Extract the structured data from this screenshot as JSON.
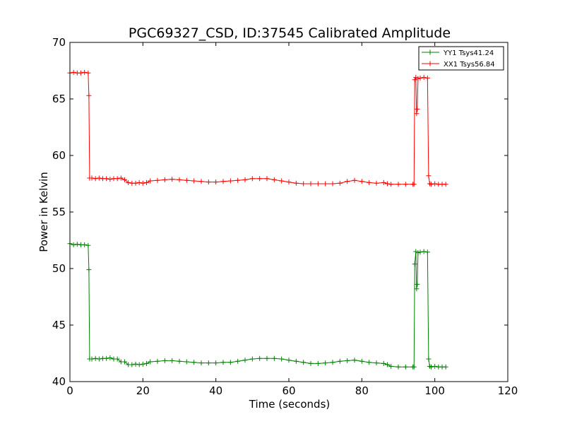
{
  "chart_data": {
    "type": "line",
    "title": "PGC69327_CSD, ID:37545 Calibrated Amplitude",
    "xlabel": "Time (seconds)",
    "ylabel": "Power in Kelvin",
    "xlim": [
      0,
      120
    ],
    "ylim": [
      40,
      70
    ],
    "xticks": [
      "0",
      "20",
      "40",
      "60",
      "80",
      "100",
      "120"
    ],
    "yticks": [
      "40",
      "45",
      "50",
      "55",
      "60",
      "65",
      "70"
    ],
    "grid": false,
    "legend_position": "top-right",
    "marker": "plus",
    "series": [
      {
        "name": "YY1 Tsys41.24",
        "color": "#008000",
        "points": [
          [
            0,
            52.2
          ],
          [
            1,
            52.1
          ],
          [
            2,
            52.15
          ],
          [
            3,
            52.1
          ],
          [
            4,
            52.1
          ],
          [
            5,
            52.05
          ],
          [
            5.2,
            49.9
          ],
          [
            5.4,
            42.0
          ],
          [
            6,
            42.0
          ],
          [
            7,
            42.05
          ],
          [
            8,
            42.0
          ],
          [
            9,
            42.05
          ],
          [
            10,
            42.05
          ],
          [
            11,
            42.1
          ],
          [
            12,
            42.0
          ],
          [
            13,
            42.0
          ],
          [
            14,
            41.75
          ],
          [
            15,
            41.75
          ],
          [
            16,
            41.5
          ],
          [
            17,
            41.5
          ],
          [
            18,
            41.55
          ],
          [
            19,
            41.5
          ],
          [
            20,
            41.55
          ],
          [
            21,
            41.6
          ],
          [
            22,
            41.75
          ],
          [
            24,
            41.8
          ],
          [
            26,
            41.85
          ],
          [
            28,
            41.85
          ],
          [
            30,
            41.8
          ],
          [
            32,
            41.75
          ],
          [
            34,
            41.7
          ],
          [
            36,
            41.65
          ],
          [
            38,
            41.65
          ],
          [
            40,
            41.65
          ],
          [
            42,
            41.7
          ],
          [
            44,
            41.7
          ],
          [
            46,
            41.8
          ],
          [
            48,
            41.9
          ],
          [
            50,
            42.0
          ],
          [
            52,
            42.05
          ],
          [
            54,
            42.05
          ],
          [
            56,
            42.05
          ],
          [
            58,
            42.0
          ],
          [
            60,
            41.9
          ],
          [
            62,
            41.8
          ],
          [
            64,
            41.7
          ],
          [
            66,
            41.6
          ],
          [
            68,
            41.6
          ],
          [
            70,
            41.65
          ],
          [
            72,
            41.7
          ],
          [
            74,
            41.8
          ],
          [
            76,
            41.85
          ],
          [
            78,
            41.9
          ],
          [
            80,
            41.8
          ],
          [
            82,
            41.7
          ],
          [
            84,
            41.65
          ],
          [
            86,
            41.6
          ],
          [
            87,
            41.5
          ],
          [
            88,
            41.35
          ],
          [
            90,
            41.3
          ],
          [
            92,
            41.3
          ],
          [
            94,
            41.3
          ],
          [
            94.3,
            41.3
          ],
          [
            94.5,
            50.4
          ],
          [
            94.8,
            51.5
          ],
          [
            95.0,
            48.2
          ],
          [
            95.2,
            48.6
          ],
          [
            95.4,
            51.4
          ],
          [
            96,
            51.45
          ],
          [
            97,
            51.5
          ],
          [
            98,
            51.45
          ],
          [
            98.3,
            42.0
          ],
          [
            98.6,
            41.35
          ],
          [
            99,
            41.3
          ],
          [
            100,
            41.35
          ],
          [
            101,
            41.3
          ],
          [
            102,
            41.3
          ],
          [
            103,
            41.3
          ]
        ]
      },
      {
        "name": "XX1 Tsys56.84",
        "color": "#ff0000",
        "points": [
          [
            0,
            67.3
          ],
          [
            1,
            67.35
          ],
          [
            2,
            67.3
          ],
          [
            3,
            67.3
          ],
          [
            4,
            67.35
          ],
          [
            5,
            67.3
          ],
          [
            5.2,
            65.3
          ],
          [
            5.4,
            58.0
          ],
          [
            6,
            58.0
          ],
          [
            7,
            57.95
          ],
          [
            8,
            58.0
          ],
          [
            9,
            57.95
          ],
          [
            10,
            57.95
          ],
          [
            11,
            57.9
          ],
          [
            12,
            57.95
          ],
          [
            13,
            57.95
          ],
          [
            14,
            58.0
          ],
          [
            15,
            57.85
          ],
          [
            16,
            57.6
          ],
          [
            17,
            57.55
          ],
          [
            18,
            57.55
          ],
          [
            19,
            57.6
          ],
          [
            20,
            57.55
          ],
          [
            21,
            57.6
          ],
          [
            22,
            57.75
          ],
          [
            24,
            57.8
          ],
          [
            26,
            57.85
          ],
          [
            28,
            57.9
          ],
          [
            30,
            57.85
          ],
          [
            32,
            57.8
          ],
          [
            34,
            57.75
          ],
          [
            36,
            57.7
          ],
          [
            38,
            57.65
          ],
          [
            40,
            57.65
          ],
          [
            42,
            57.7
          ],
          [
            44,
            57.75
          ],
          [
            46,
            57.8
          ],
          [
            48,
            57.85
          ],
          [
            50,
            57.95
          ],
          [
            52,
            57.95
          ],
          [
            54,
            57.95
          ],
          [
            56,
            57.85
          ],
          [
            58,
            57.75
          ],
          [
            60,
            57.65
          ],
          [
            62,
            57.55
          ],
          [
            64,
            57.5
          ],
          [
            66,
            57.5
          ],
          [
            68,
            57.5
          ],
          [
            70,
            57.5
          ],
          [
            72,
            57.5
          ],
          [
            74,
            57.55
          ],
          [
            76,
            57.7
          ],
          [
            78,
            57.8
          ],
          [
            80,
            57.7
          ],
          [
            82,
            57.6
          ],
          [
            84,
            57.55
          ],
          [
            86,
            57.6
          ],
          [
            87,
            57.5
          ],
          [
            88,
            57.45
          ],
          [
            90,
            57.45
          ],
          [
            92,
            57.45
          ],
          [
            94,
            57.45
          ],
          [
            94.3,
            57.45
          ],
          [
            94.5,
            66.7
          ],
          [
            94.8,
            66.9
          ],
          [
            95.0,
            63.7
          ],
          [
            95.2,
            64.1
          ],
          [
            95.4,
            66.8
          ],
          [
            96,
            66.85
          ],
          [
            97,
            66.9
          ],
          [
            98,
            66.85
          ],
          [
            98.3,
            58.2
          ],
          [
            98.6,
            57.5
          ],
          [
            99,
            57.45
          ],
          [
            100,
            57.5
          ],
          [
            101,
            57.45
          ],
          [
            102,
            57.45
          ],
          [
            103,
            57.45
          ]
        ]
      }
    ]
  }
}
